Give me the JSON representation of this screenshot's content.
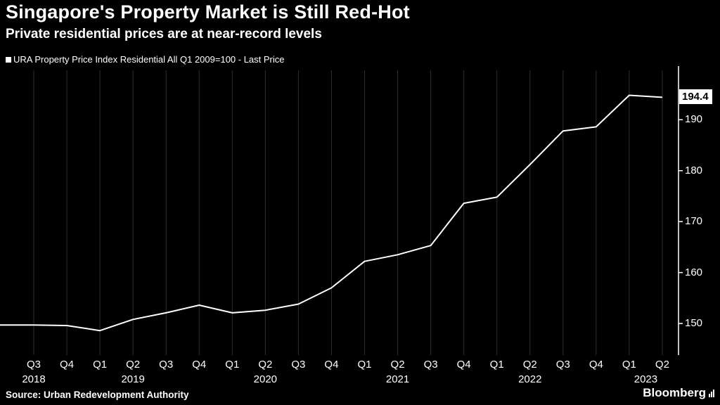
{
  "header": {
    "title": "Singapore's Property Market is Still Red-Hot",
    "subtitle": "Private residential prices are at near-record levels"
  },
  "legend": {
    "label": "URA Property Price Index Residential All Q1 2009=100 - Last Price",
    "marker_color": "#ffffff"
  },
  "chart_data": {
    "type": "line",
    "title": "URA Property Price Index Residential All Q1 2009=100 - Last Price",
    "x": [
      "Q3 2018",
      "Q4 2018",
      "Q1 2019",
      "Q2 2019",
      "Q3 2019",
      "Q4 2019",
      "Q1 2020",
      "Q2 2020",
      "Q3 2020",
      "Q4 2020",
      "Q1 2021",
      "Q2 2021",
      "Q3 2021",
      "Q4 2021",
      "Q1 2022",
      "Q2 2022",
      "Q3 2022",
      "Q4 2022",
      "Q1 2023",
      "Q2 2023"
    ],
    "quarter_labels": [
      "Q3",
      "Q4",
      "Q1",
      "Q2",
      "Q3",
      "Q4",
      "Q1",
      "Q2",
      "Q3",
      "Q4",
      "Q1",
      "Q2",
      "Q3",
      "Q4",
      "Q1",
      "Q2",
      "Q3",
      "Q4",
      "Q1",
      "Q2"
    ],
    "values": [
      149.7,
      149.6,
      148.6,
      150.8,
      152.1,
      153.6,
      152.1,
      152.6,
      153.8,
      157.0,
      162.2,
      163.5,
      165.3,
      173.6,
      174.8,
      181.2,
      187.8,
      188.6,
      194.8,
      194.4
    ],
    "edge_start_value": 149.7,
    "last_price": "194.4",
    "yticks": [
      150,
      160,
      170,
      180,
      190
    ],
    "ylim": [
      143.8,
      199.7
    ],
    "line_color": "#ffffff",
    "grid_color": "#2e2e2e",
    "axis_color": "#ffffff",
    "grid": "vertical-only",
    "legend_position": "top-left",
    "years": [
      {
        "label": "2018",
        "anchor_ticks": [
          0
        ]
      },
      {
        "label": "2019",
        "anchor_ticks": [
          3
        ]
      },
      {
        "label": "2020",
        "anchor_ticks": [
          7
        ]
      },
      {
        "label": "2021",
        "anchor_ticks": [
          11
        ]
      },
      {
        "label": "2022",
        "anchor_ticks": [
          15
        ]
      },
      {
        "label": "2023",
        "anchor_ticks": [
          18,
          19
        ]
      }
    ]
  },
  "footer": {
    "source": "Source: Urban Redevelopment Authority",
    "brand": "Bloomberg"
  }
}
